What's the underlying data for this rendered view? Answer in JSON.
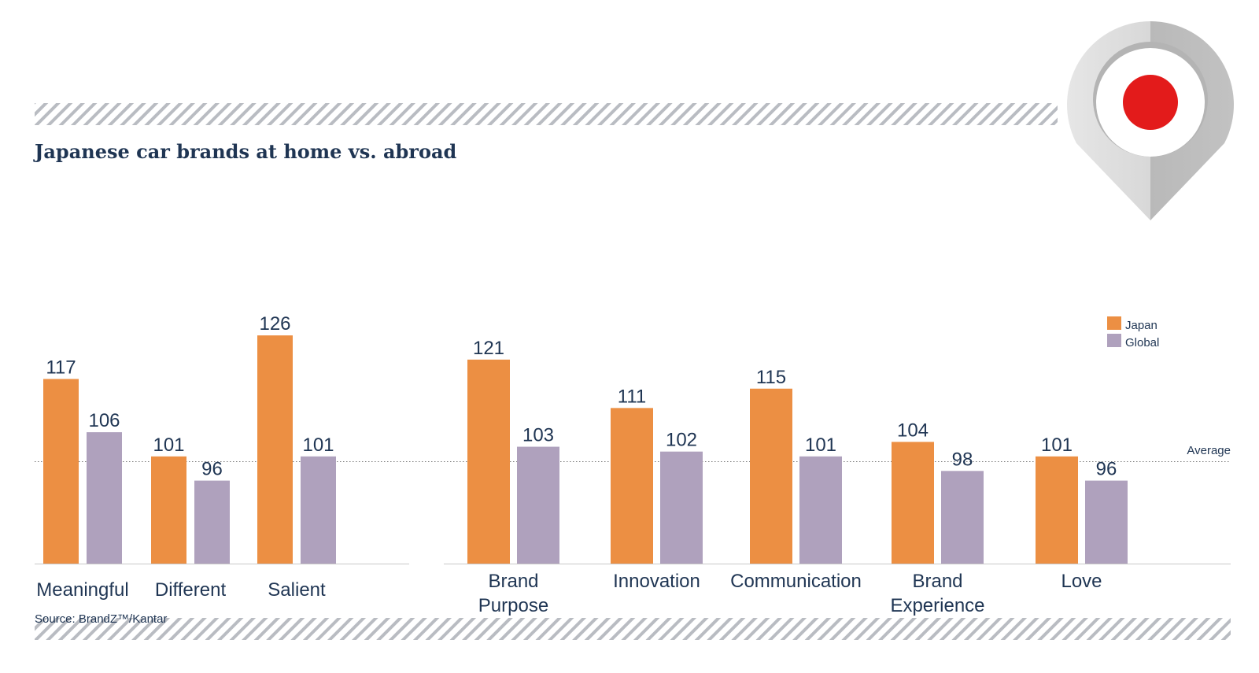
{
  "title": "Japanese car brands at home vs. abroad",
  "source": "Source: BrandZ™/Kantar",
  "average_label": "Average",
  "colors": {
    "japan": "#ec8f43",
    "global": "#afa1bd",
    "text": "#1f3553",
    "pin_red": "#e31b1b"
  },
  "icons": {
    "map_pin": "map-pin-icon"
  },
  "chart_data": [
    {
      "type": "bar",
      "categories": [
        "Meaningful",
        "Different",
        "Salient"
      ],
      "series": [
        {
          "name": "Japan",
          "values": [
            117,
            101,
            126
          ]
        },
        {
          "name": "Global",
          "values": [
            106,
            96,
            101
          ]
        }
      ],
      "baseline": 100,
      "title": "Japanese car brands at home vs. abroad"
    },
    {
      "type": "bar",
      "categories": [
        "Brand Purpose",
        "Innovation",
        "Communication",
        "Brand Experience",
        "Love"
      ],
      "series": [
        {
          "name": "Japan",
          "values": [
            121,
            111,
            115,
            104,
            101
          ]
        },
        {
          "name": "Global",
          "values": [
            103,
            102,
            101,
            98,
            96
          ]
        }
      ],
      "baseline": 100,
      "legend": {
        "position": "right",
        "entries": [
          "Japan",
          "Global"
        ]
      }
    }
  ]
}
